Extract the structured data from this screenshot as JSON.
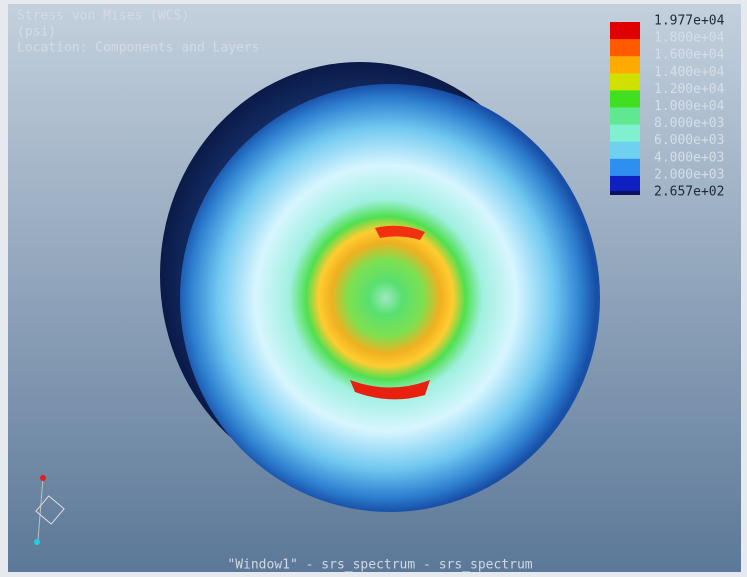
{
  "header": {
    "lines": [
      "Stress von Mises (WCS)",
      "(psi)",
      "Location: Components and Layers"
    ]
  },
  "legend": {
    "labels": [
      "1.977e+04",
      "1.800e+04",
      "1.600e+04",
      "1.400e+04",
      "1.200e+04",
      "1.000e+04",
      "8.000e+03",
      "6.000e+03",
      "4.000e+03",
      "2.000e+03",
      "2.657e+02"
    ]
  },
  "footer": {
    "text": "\"Window1\" - srs_spectrum - srs_spectrum"
  }
}
